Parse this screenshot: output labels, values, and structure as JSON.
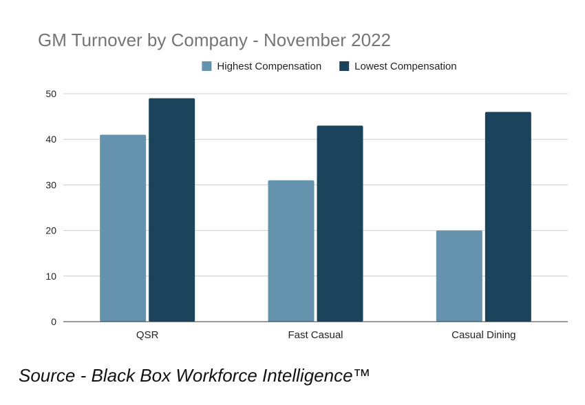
{
  "chart_data": {
    "type": "bar",
    "title": "GM Turnover by Company - November 2022",
    "xlabel": "",
    "ylabel": "",
    "categories": [
      "QSR",
      "Fast Casual",
      "Casual Dining"
    ],
    "series": [
      {
        "name": "Highest Compensation",
        "values": [
          41,
          31,
          20
        ],
        "color": "#6592ad"
      },
      {
        "name": "Lowest Compensation",
        "values": [
          49,
          43,
          46
        ],
        "color": "#1b435b"
      }
    ],
    "ylim": [
      0,
      50
    ],
    "yticks": [
      0,
      10,
      20,
      30,
      40,
      50
    ],
    "grid": true,
    "legend_position": "top-center"
  },
  "source_note": "Source - Black Box Workforce Intelligence™"
}
